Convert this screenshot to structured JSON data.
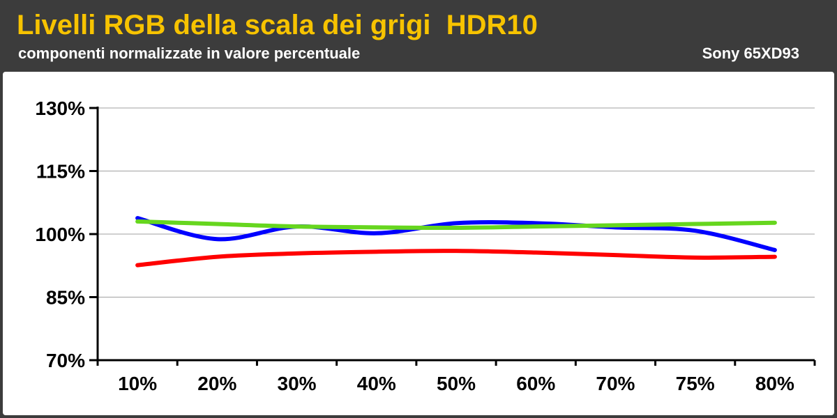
{
  "header": {
    "title": "Livelli RGB della scala dei grigi  HDR10",
    "subtitle": "componenti normalizzate in valore percentuale",
    "model": "Sony 65XD93"
  },
  "colors": {
    "background": "#3c3c3c",
    "title": "#f7c300",
    "red": "#ff0000",
    "green": "#66d61e",
    "blue": "#0000ff",
    "grid": "#a0a0a0"
  },
  "chart_data": {
    "type": "line",
    "title": "Livelli RGB della scala dei grigi  HDR10",
    "subtitle": "componenti normalizzate in valore percentuale",
    "categories": [
      "10%",
      "20%",
      "30%",
      "40%",
      "50%",
      "60%",
      "70%",
      "75%",
      "80%"
    ],
    "ylim": [
      70,
      130
    ],
    "yticks": [
      70,
      85,
      100,
      115,
      130
    ],
    "ytick_labels": [
      "70%",
      "85%",
      "100%",
      "115%",
      "130%"
    ],
    "grid": true,
    "series": [
      {
        "color": "#ff0000",
        "values": [
          92.6,
          94.6,
          95.4,
          95.8,
          96.0,
          95.6,
          95.0,
          94.4,
          94.6
        ]
      },
      {
        "color": "#0000ff",
        "values": [
          103.8,
          98.8,
          101.8,
          100.2,
          102.6,
          102.6,
          101.6,
          100.8,
          96.2
        ]
      },
      {
        "color": "#66d61e",
        "values": [
          103.0,
          102.4,
          101.8,
          101.6,
          101.5,
          101.8,
          102.1,
          102.4,
          102.7
        ]
      }
    ]
  }
}
